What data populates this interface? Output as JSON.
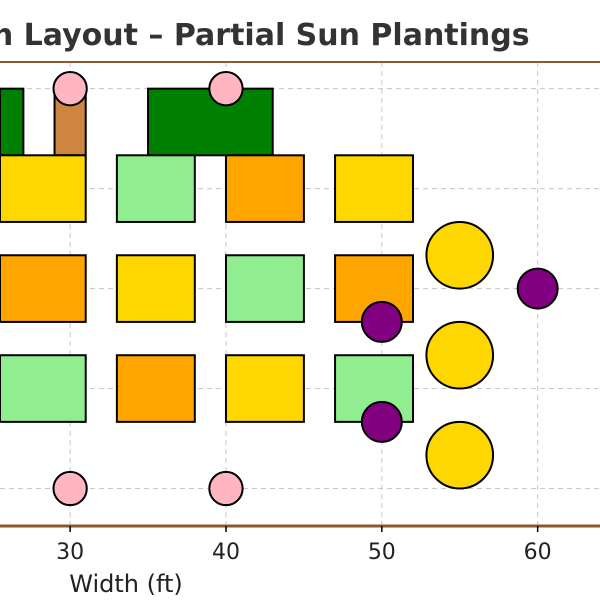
{
  "chart_data": {
    "type": "scatter",
    "title": "Garden Layout – Partial Sun Plantings",
    "xlabel": "Width (ft)",
    "ylabel": "",
    "xlim": [
      25.5,
      64
    ],
    "ylim": [
      -0.25,
      27.6
    ],
    "x_ticks": [
      30,
      40,
      50,
      60
    ],
    "x_tick_labels": [
      "30",
      "40",
      "50",
      "60"
    ],
    "grid": true,
    "grid_y": [
      2,
      8,
      14,
      20,
      26
    ],
    "beds": [
      {
        "x": 25.5,
        "y": 22,
        "w": 1.5,
        "h": 4,
        "color": "#008000"
      },
      {
        "x": 29,
        "y": 22,
        "w": 2,
        "h": 4,
        "color": "#CD853F"
      },
      {
        "x": 35,
        "y": 22,
        "w": 8,
        "h": 4,
        "color": "#008000"
      },
      {
        "x": 25.5,
        "y": 18,
        "w": 5.5,
        "h": 4,
        "color": "#FFD700"
      },
      {
        "x": 33,
        "y": 18,
        "w": 5,
        "h": 4,
        "color": "#90EE90"
      },
      {
        "x": 40,
        "y": 18,
        "w": 5,
        "h": 4,
        "color": "#FFA500"
      },
      {
        "x": 47,
        "y": 18,
        "w": 5,
        "h": 4,
        "color": "#FFD700"
      },
      {
        "x": 25.5,
        "y": 12,
        "w": 5.5,
        "h": 4,
        "color": "#FFA500"
      },
      {
        "x": 33,
        "y": 12,
        "w": 5,
        "h": 4,
        "color": "#FFD700"
      },
      {
        "x": 40,
        "y": 12,
        "w": 5,
        "h": 4,
        "color": "#90EE90"
      },
      {
        "x": 47,
        "y": 12,
        "w": 5,
        "h": 4,
        "color": "#FFA500"
      },
      {
        "x": 25.5,
        "y": 6,
        "w": 5.5,
        "h": 4,
        "color": "#90EE90"
      },
      {
        "x": 33,
        "y": 6,
        "w": 5,
        "h": 4,
        "color": "#FFA500"
      },
      {
        "x": 40,
        "y": 6,
        "w": 5,
        "h": 4,
        "color": "#FFD700"
      },
      {
        "x": 47,
        "y": 6,
        "w": 5,
        "h": 4,
        "color": "#90EE90"
      }
    ],
    "plants": [
      {
        "x": 30,
        "y": 26,
        "r": 1.0,
        "color": "#FFB6C1"
      },
      {
        "x": 40,
        "y": 26,
        "r": 1.0,
        "color": "#FFB6C1"
      },
      {
        "x": 30,
        "y": 2,
        "r": 1.0,
        "color": "#FFB6C1"
      },
      {
        "x": 40,
        "y": 2,
        "r": 1.0,
        "color": "#FFB6C1"
      },
      {
        "x": 50,
        "y": 12,
        "r": 1.2,
        "color": "#800080"
      },
      {
        "x": 50,
        "y": 6,
        "r": 1.2,
        "color": "#800080"
      },
      {
        "x": 60,
        "y": 14,
        "r": 1.2,
        "color": "#800080"
      },
      {
        "x": 55,
        "y": 16,
        "r": 2.0,
        "color": "#FFD700"
      },
      {
        "x": 55,
        "y": 10,
        "r": 2.0,
        "color": "#FFD700"
      },
      {
        "x": 55,
        "y": 4,
        "r": 2.0,
        "color": "#FFD700"
      }
    ]
  },
  "colors": {
    "frame": "#8B5A2B",
    "grid": "#c8c8c8",
    "outline": "#000000"
  }
}
